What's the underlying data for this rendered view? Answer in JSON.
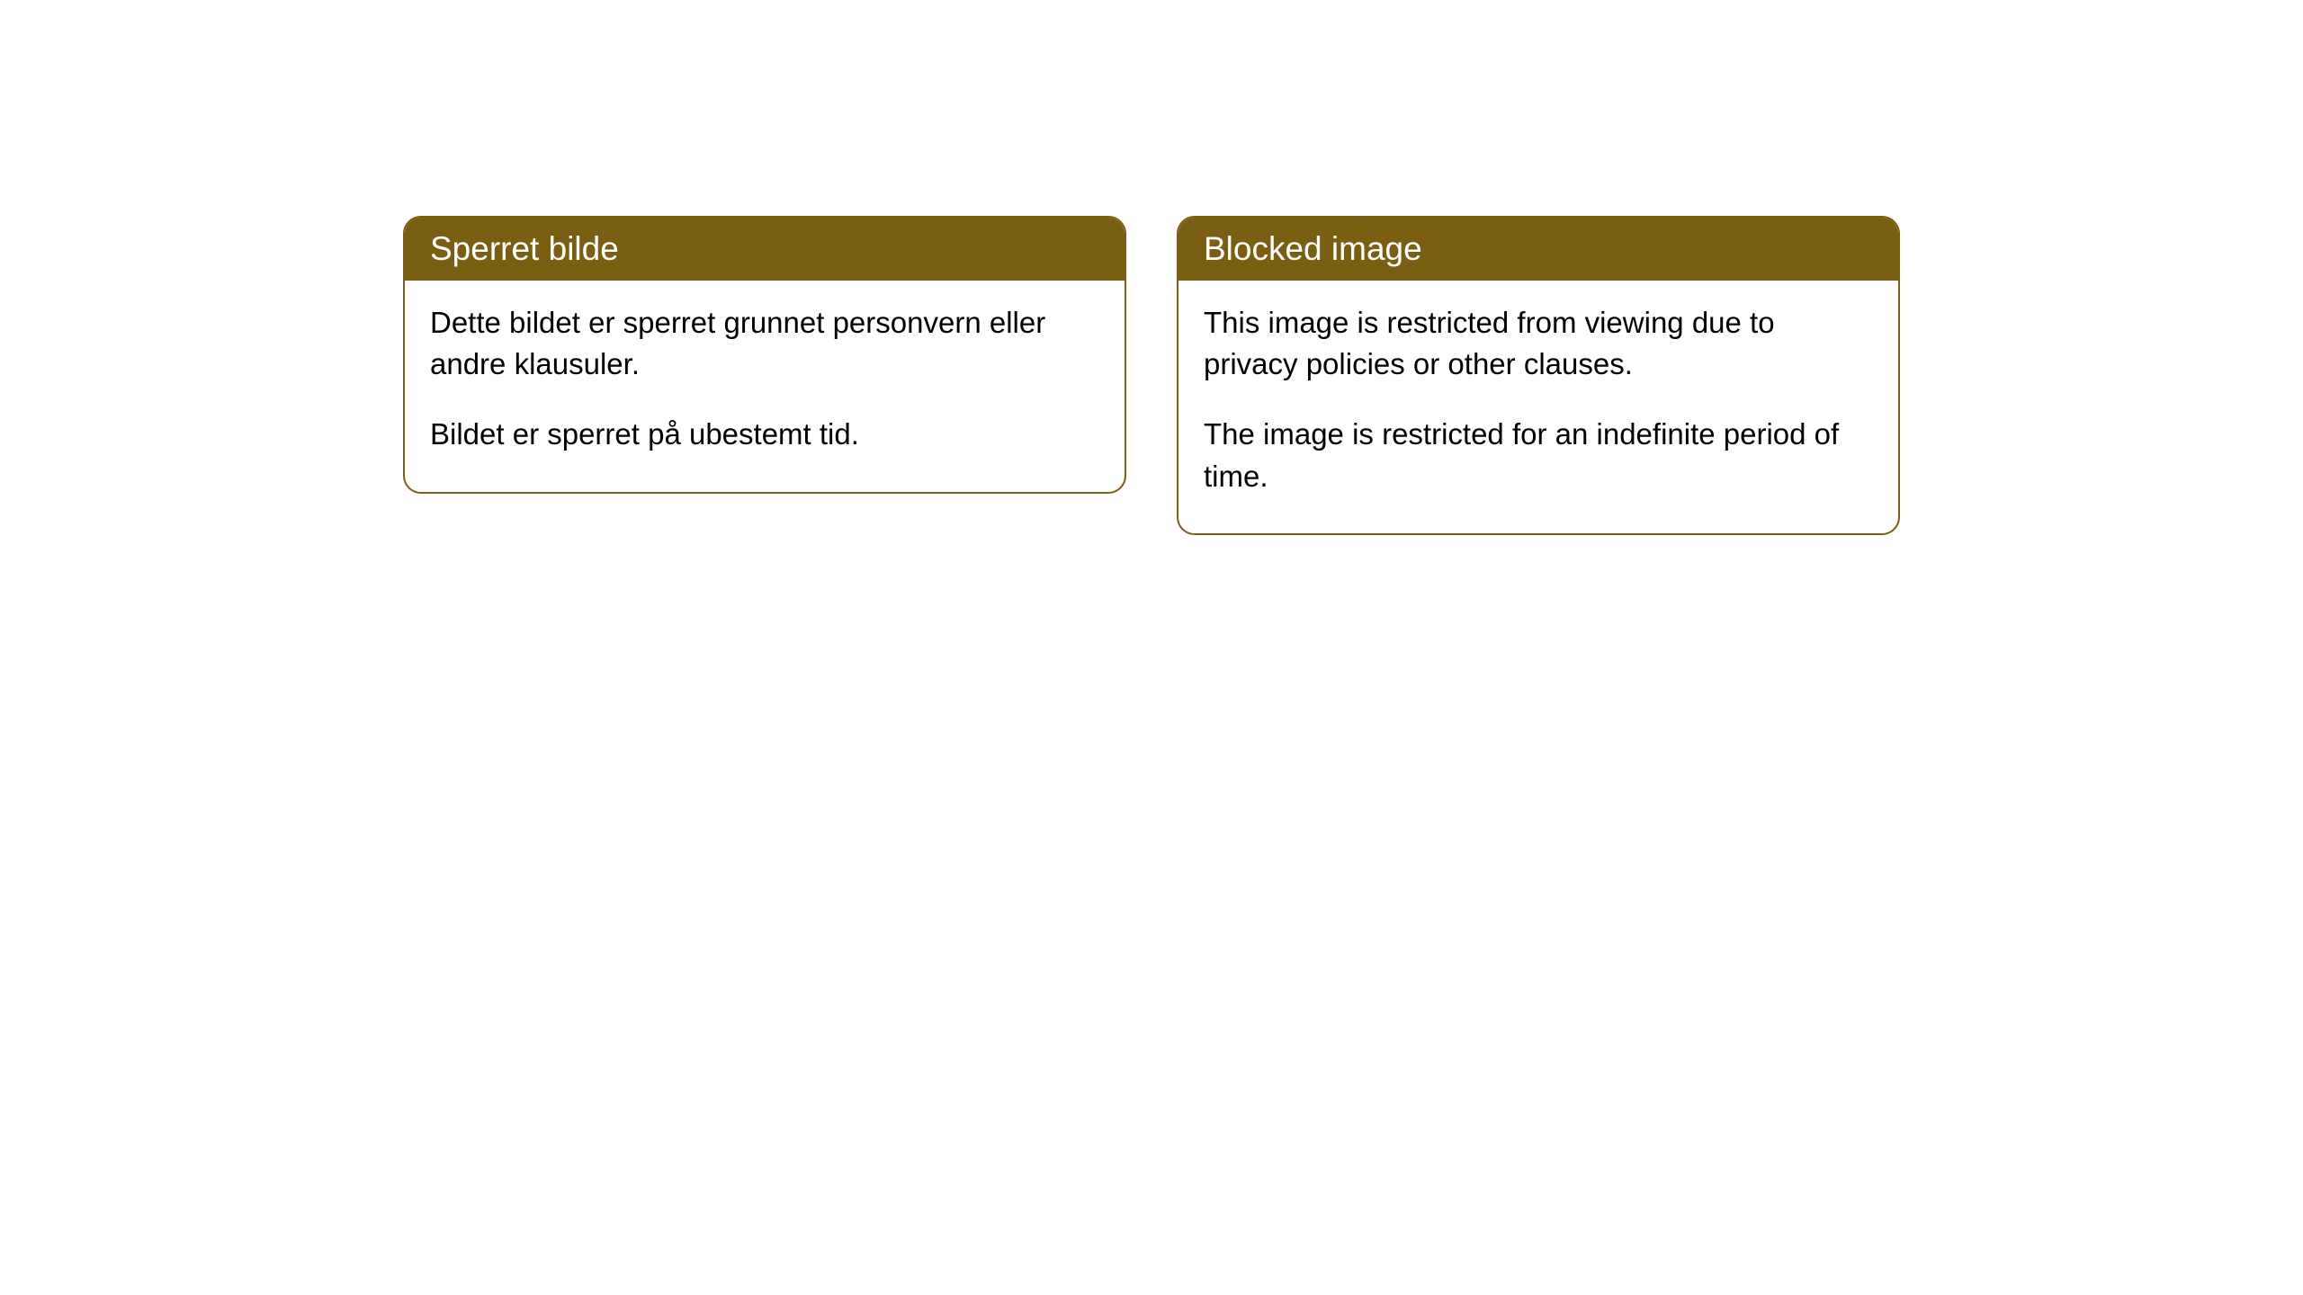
{
  "theme": {
    "header_bg": "#7a5e12",
    "header_text_color": "#ffffff",
    "border_color": "#7a5e12",
    "body_bg": "#ffffff",
    "body_text_color": "#000000",
    "border_radius": "20px",
    "header_fontsize": 37,
    "body_fontsize": 33
  },
  "cards": [
    {
      "header": "Sperret bilde",
      "paragraph1": "Dette bildet er sperret grunnet personvern eller andre klausuler.",
      "paragraph2": "Bildet er sperret på ubestemt tid."
    },
    {
      "header": "Blocked image",
      "paragraph1": "This image is restricted from viewing due to privacy policies or other clauses.",
      "paragraph2": "The image is restricted for an indefinite period of time."
    }
  ]
}
